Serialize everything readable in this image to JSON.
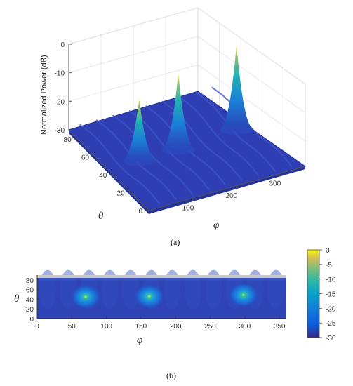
{
  "chart_data": [
    {
      "type": "surface",
      "panel": "(a)",
      "zlabel": "Normalized Power (dB)",
      "xlabel": "φ",
      "ylabel": "θ",
      "zlim": [
        -30,
        0
      ],
      "xlim": [
        0,
        360
      ],
      "ylim": [
        0,
        90
      ],
      "z_ticks": [
        0,
        -10,
        -20,
        -30
      ],
      "x_ticks": [
        100,
        200,
        300
      ],
      "y_ticks": [
        0,
        20,
        40,
        60,
        80
      ],
      "peaks": [
        {
          "phi": 70,
          "theta": 45,
          "power_db": -8
        },
        {
          "phi": 160,
          "theta": 45,
          "power_db": -3
        },
        {
          "phi": 300,
          "theta": 48,
          "power_db": 0
        }
      ],
      "grid": true
    },
    {
      "type": "heatmap",
      "panel": "(b)",
      "xlabel": "φ",
      "ylabel": "θ",
      "xlim": [
        0,
        360
      ],
      "ylim": [
        0,
        90
      ],
      "x_ticks": [
        0,
        50,
        100,
        150,
        200,
        250,
        300,
        350
      ],
      "y_ticks": [
        0,
        20,
        40,
        60,
        80
      ],
      "colorbar_ticks": [
        0,
        -5,
        -10,
        -15,
        -20,
        -25,
        -30
      ],
      "colorbar_range": [
        -30,
        0
      ],
      "peaks": [
        {
          "phi": 70,
          "theta": 45
        },
        {
          "phi": 162,
          "theta": 46
        },
        {
          "phi": 298,
          "theta": 49
        }
      ]
    }
  ]
}
